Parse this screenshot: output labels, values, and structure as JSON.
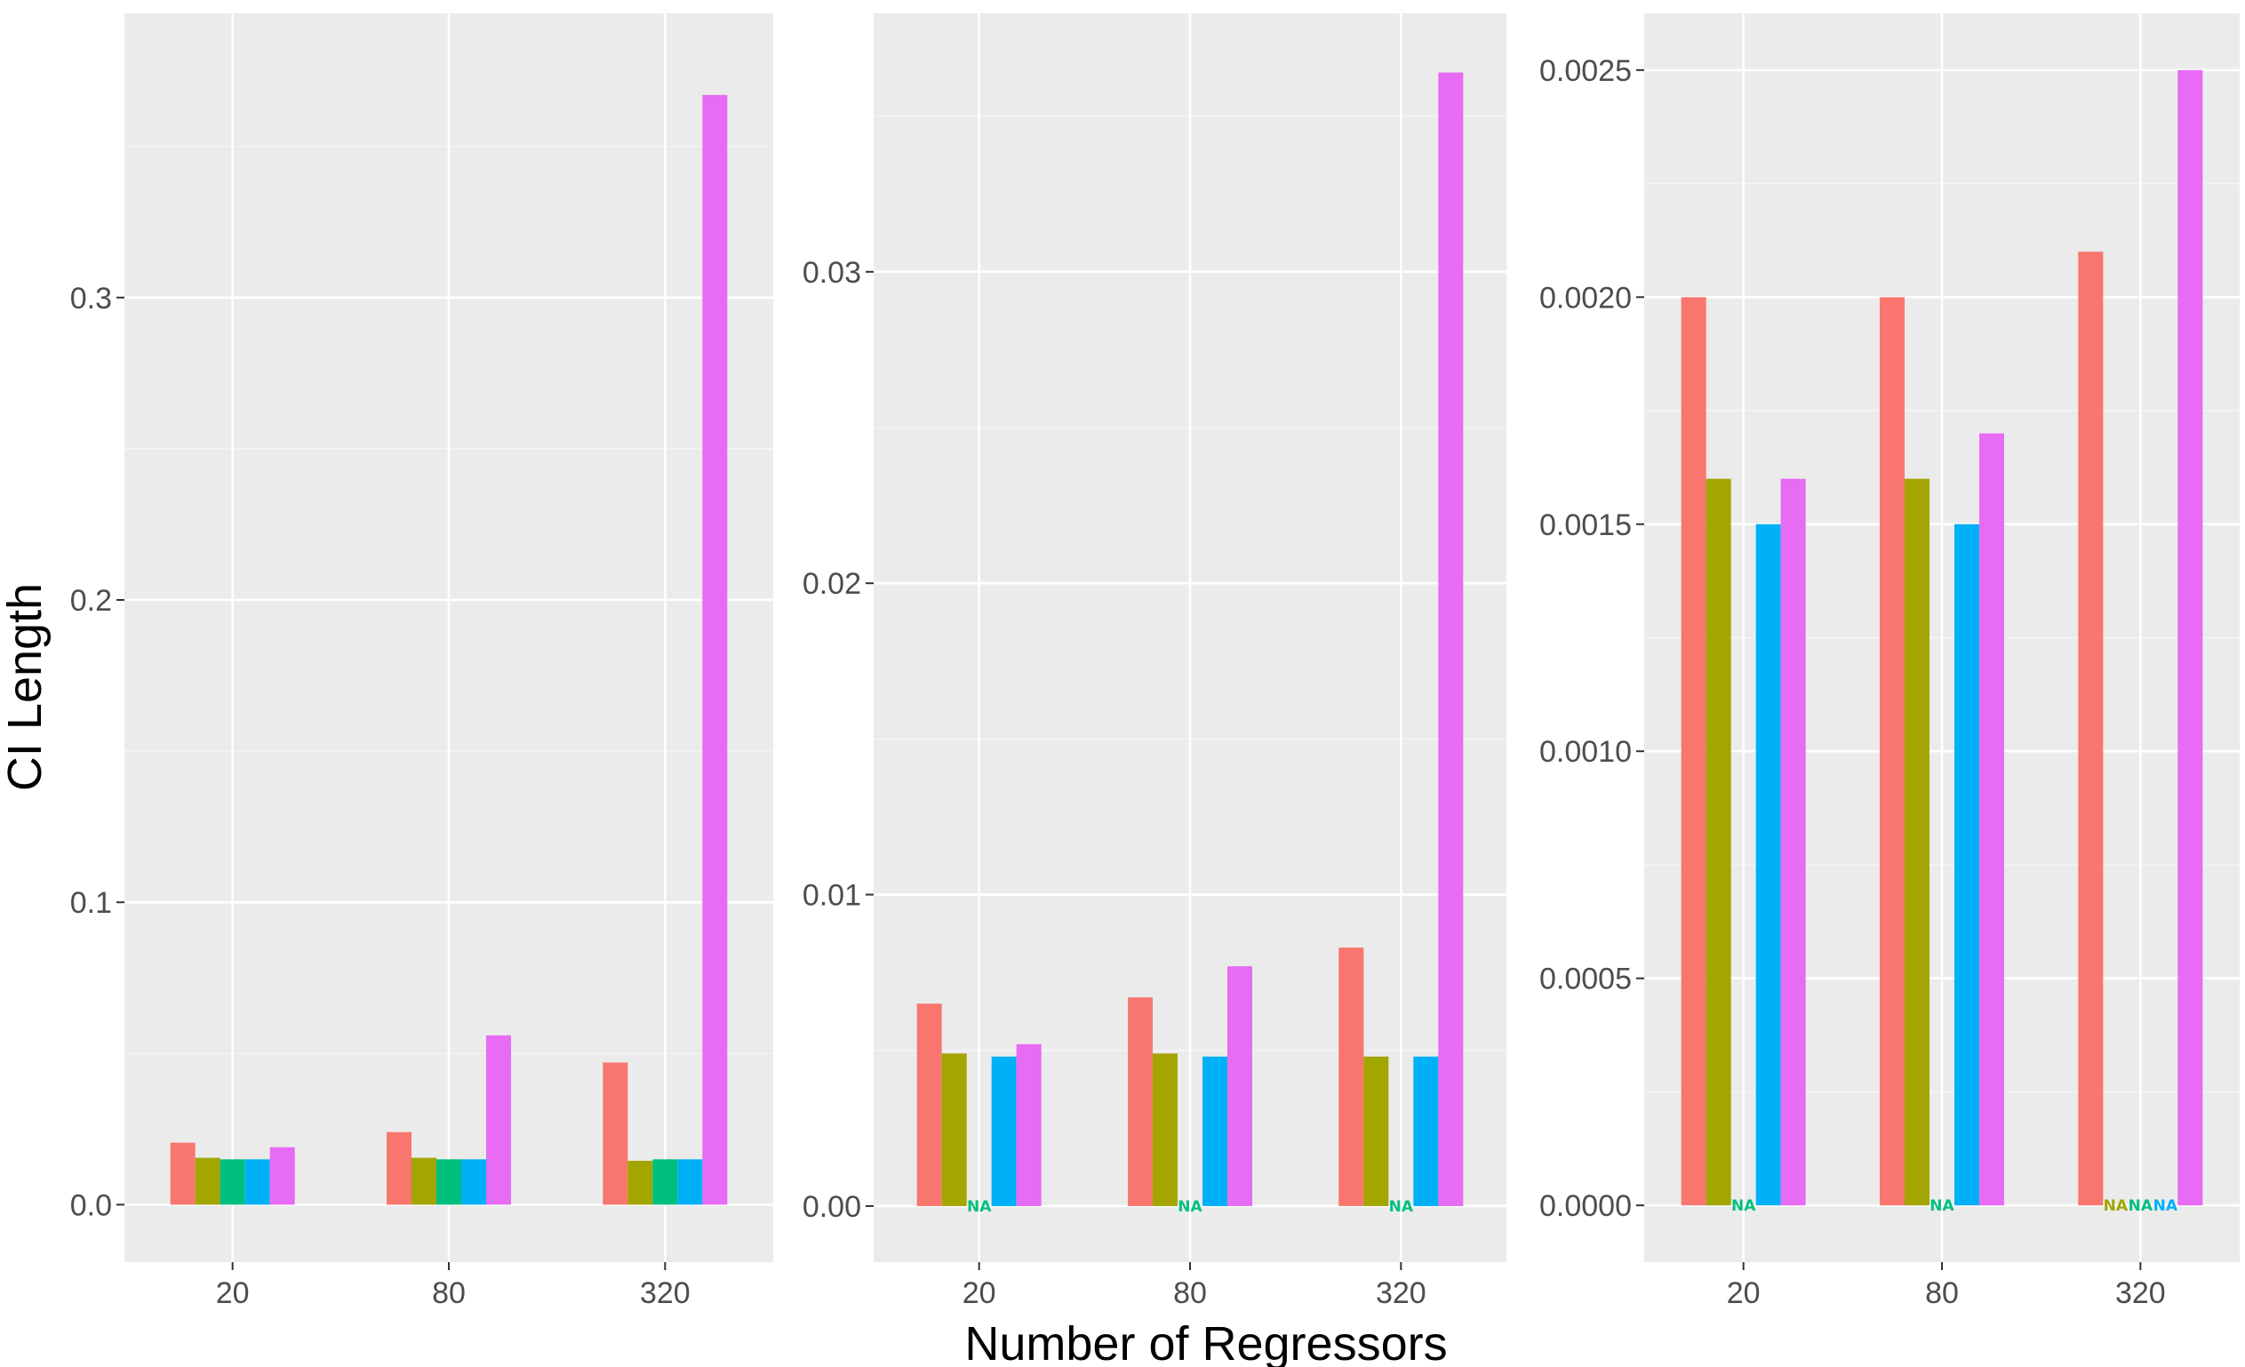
{
  "chart_data": {
    "type": "bar",
    "xlabel": "Number of Regressors",
    "ylabel": "CI Length",
    "categories": [
      "20",
      "80",
      "320"
    ],
    "series_colors": [
      "#F8766D",
      "#A3A500",
      "#00BF7D",
      "#00B0F6",
      "#E76BF3"
    ],
    "na_text": "NA",
    "panels": [
      {
        "ylim": [
          -0.019,
          0.394
        ],
        "yticks": [
          0.0,
          0.1,
          0.2,
          0.3
        ],
        "ytick_labels": [
          "0.0",
          "0.1",
          "0.2",
          "0.3"
        ],
        "series": [
          {
            "values": [
              0.0205,
              0.024,
              0.047
            ]
          },
          {
            "values": [
              0.0155,
              0.0155,
              0.0145
            ]
          },
          {
            "values": [
              0.015,
              0.015,
              0.015
            ]
          },
          {
            "values": [
              0.015,
              0.015,
              0.015
            ]
          },
          {
            "values": [
              0.019,
              0.056,
              0.367
            ]
          }
        ]
      },
      {
        "ylim": [
          -0.0018,
          0.0383
        ],
        "yticks": [
          0.0,
          0.01,
          0.02,
          0.03
        ],
        "ytick_labels": [
          "0.00",
          "0.01",
          "0.02",
          "0.03"
        ],
        "series": [
          {
            "values": [
              0.0065,
              0.0067,
              0.0083
            ]
          },
          {
            "values": [
              0.0049,
              0.0049,
              0.0048
            ]
          },
          {
            "values": [
              null,
              null,
              null
            ]
          },
          {
            "values": [
              0.0048,
              0.0048,
              0.0048
            ]
          },
          {
            "values": [
              0.0052,
              0.0077,
              0.0364
            ]
          }
        ]
      },
      {
        "ylim": [
          -0.000125,
          0.002625
        ],
        "yticks": [
          0.0,
          0.0005,
          0.001,
          0.0015,
          0.002,
          0.0025
        ],
        "ytick_labels": [
          "0.0000",
          "0.0005",
          "0.0010",
          "0.0015",
          "0.0020",
          "0.0025"
        ],
        "series": [
          {
            "values": [
              0.002,
              0.002,
              0.0021
            ]
          },
          {
            "values": [
              0.0016,
              0.0016,
              null
            ]
          },
          {
            "values": [
              null,
              null,
              null
            ]
          },
          {
            "values": [
              0.0015,
              0.0015,
              null
            ]
          },
          {
            "values": [
              0.0016,
              0.0017,
              0.0025
            ]
          }
        ]
      }
    ]
  }
}
